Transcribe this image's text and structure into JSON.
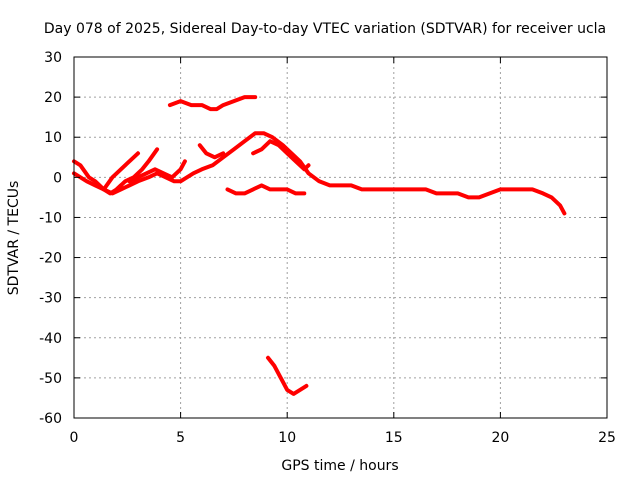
{
  "chart_data": {
    "type": "line",
    "title": "Day 078 of 2025, Sidereal Day-to-day VTEC variation (SDTVAR) for receiver ucla",
    "xlabel": "GPS time / hours",
    "ylabel": "SDTVAR / TECUs",
    "xlim": [
      0,
      25
    ],
    "ylim": [
      -60,
      30
    ],
    "xticks": [
      0,
      5,
      10,
      15,
      20,
      25
    ],
    "yticks": [
      -60,
      -50,
      -40,
      -30,
      -20,
      -10,
      0,
      10,
      20,
      30
    ],
    "grid": true,
    "legend": "none",
    "color": "#ff0000",
    "series": [
      {
        "name": "arc-1",
        "x": [
          0.0,
          0.3,
          0.7,
          1.0,
          1.4,
          1.7,
          2.0,
          2.2
        ],
        "y": [
          4,
          3,
          0,
          -1,
          -3,
          -4,
          -3,
          -2
        ]
      },
      {
        "name": "arc-2",
        "x": [
          0.0,
          0.3,
          0.6,
          1.0,
          1.4,
          1.8,
          2.2,
          2.6,
          3.0,
          3.5,
          3.9,
          4.3,
          4.7,
          5.0,
          5.3,
          5.6,
          6.0,
          6.5,
          7.0,
          7.5,
          8.0,
          8.5,
          8.9,
          9.3,
          9.8,
          10.2,
          10.6,
          11.0,
          11.5,
          12.0,
          12.5,
          13.0,
          13.5,
          14.0,
          14.5,
          15.0,
          15.5,
          16.0,
          16.5,
          17.0,
          17.5,
          18.0,
          18.5,
          19.0,
          19.5,
          20.0,
          20.5,
          21.0,
          21.5,
          22.0,
          22.4,
          22.8,
          23.0
        ],
        "y": [
          1,
          0,
          -1,
          -2,
          -3,
          -4,
          -3,
          -2,
          -1,
          0,
          1,
          0,
          -1,
          -1,
          0,
          1,
          2,
          3,
          5,
          7,
          9,
          11,
          11,
          10,
          8,
          6,
          4,
          1,
          -1,
          -2,
          -2,
          -2,
          -3,
          -3,
          -3,
          -3,
          -3,
          -3,
          -3,
          -4,
          -4,
          -4,
          -5,
          -5,
          -4,
          -3,
          -3,
          -3,
          -3,
          -4,
          -5,
          -7,
          -9
        ]
      },
      {
        "name": "arc-3",
        "x": [
          1.4,
          1.8,
          2.2,
          2.6,
          3.0
        ],
        "y": [
          -3,
          0,
          2,
          4,
          6
        ]
      },
      {
        "name": "arc-4",
        "x": [
          2.0,
          2.4,
          2.8,
          3.2,
          3.5,
          3.9
        ],
        "y": [
          -3,
          -1,
          0,
          2,
          4,
          7
        ]
      },
      {
        "name": "arc-5",
        "x": [
          2.6,
          3.0,
          3.4,
          3.8,
          4.2,
          4.6,
          5.0,
          5.2
        ],
        "y": [
          -1,
          0,
          1,
          2,
          1,
          0,
          2,
          4
        ]
      },
      {
        "name": "arc-6",
        "x": [
          4.5,
          5.0,
          5.5,
          6.0,
          6.4,
          6.7,
          7.0,
          7.5,
          8.0,
          8.5
        ],
        "y": [
          18,
          19,
          18,
          18,
          17,
          17,
          18,
          19,
          20,
          20
        ]
      },
      {
        "name": "arc-7",
        "x": [
          5.9,
          6.2,
          6.6,
          7.0
        ],
        "y": [
          8,
          6,
          5,
          6
        ]
      },
      {
        "name": "arc-8",
        "x": [
          7.2,
          7.6,
          8.0,
          8.4,
          8.8,
          9.2,
          9.6,
          10.0,
          10.4,
          10.8
        ],
        "y": [
          -3,
          -4,
          -4,
          -3,
          -2,
          -3,
          -3,
          -3,
          -4,
          -4
        ]
      },
      {
        "name": "arc-9",
        "x": [
          8.4,
          8.8,
          9.2,
          9.6,
          10.0,
          10.4,
          10.8,
          11.0
        ],
        "y": [
          6,
          7,
          9,
          8,
          6,
          4,
          2,
          3
        ]
      },
      {
        "name": "arc-10",
        "x": [
          9.1,
          9.4,
          9.7,
          10.0,
          10.3,
          10.6,
          10.9
        ],
        "y": [
          -45,
          -47,
          -50,
          -53,
          -54,
          -53,
          -52
        ]
      }
    ]
  }
}
